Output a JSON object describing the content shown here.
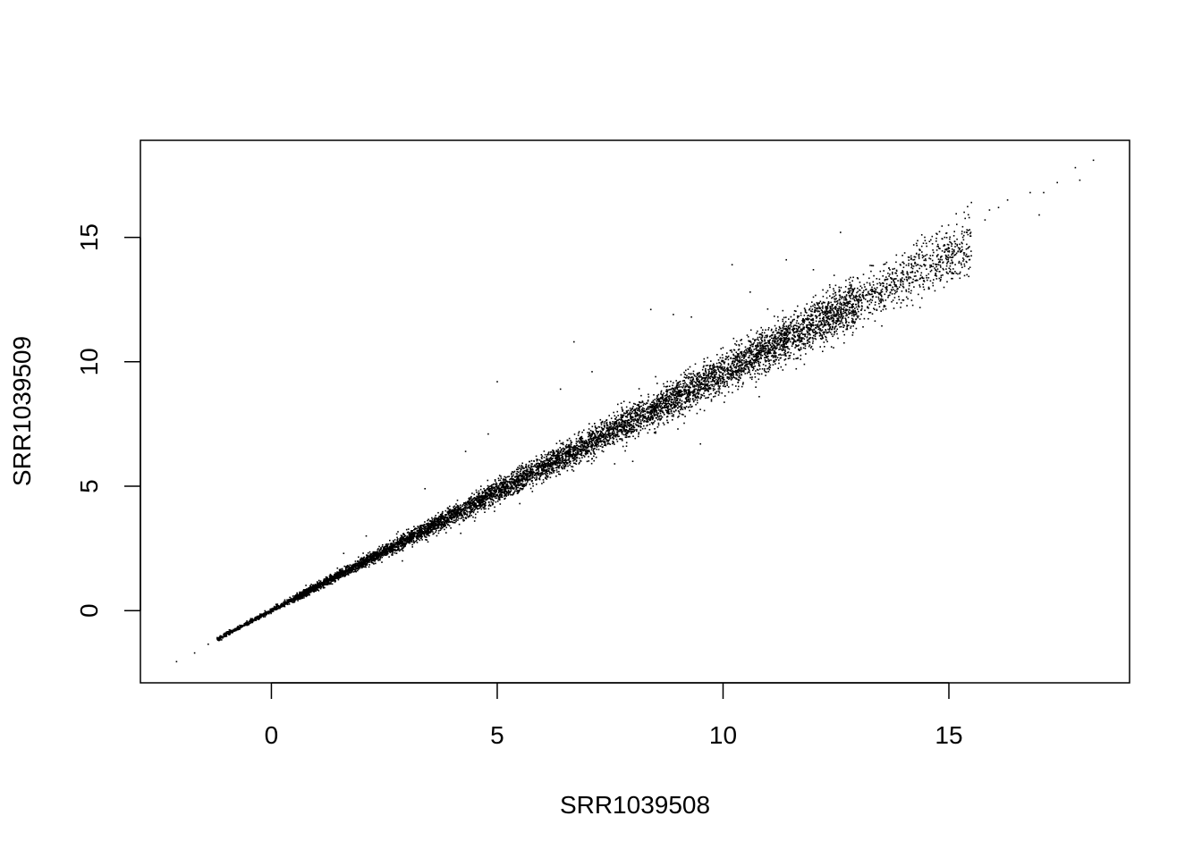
{
  "chart_data": {
    "type": "scatter",
    "title": "",
    "xlabel": "SRR1039508",
    "ylabel": "SRR1039509",
    "xlim": [
      -2.9,
      19.0
    ],
    "ylim": [
      -2.9,
      18.9
    ],
    "xticks": [
      0,
      5,
      10,
      15
    ],
    "yticks": [
      0,
      5,
      10,
      15
    ],
    "xtick_labels": [
      "0",
      "5",
      "10",
      "15"
    ],
    "ytick_labels": [
      "0",
      "5",
      "10",
      "15"
    ],
    "grid": false,
    "legend": "none",
    "marker_color": "#000000",
    "marker": "small dot",
    "trend": {
      "slope": 0.955,
      "intercept": 0.0,
      "x_range": [
        -2.1,
        18.1
      ]
    },
    "points": [
      {
        "x": -2.1,
        "y": -2.05
      },
      {
        "x": -1.7,
        "y": -1.7
      },
      {
        "x": -1.4,
        "y": -1.35
      },
      {
        "x": 18.2,
        "y": 18.1
      },
      {
        "x": 17.8,
        "y": 17.8
      },
      {
        "x": 17.9,
        "y": 17.3
      },
      {
        "x": 17.4,
        "y": 17.2
      },
      {
        "x": 17.1,
        "y": 16.8
      },
      {
        "x": 16.8,
        "y": 16.8
      },
      {
        "x": 17.0,
        "y": 15.9
      },
      {
        "x": 16.3,
        "y": 16.5
      },
      {
        "x": 16.1,
        "y": 16.2
      },
      {
        "x": 15.9,
        "y": 16.1
      },
      {
        "x": 15.8,
        "y": 15.7
      },
      {
        "x": 15.5,
        "y": 16.4
      },
      {
        "x": 15.4,
        "y": 15.3
      },
      {
        "x": 15.3,
        "y": 14.5
      },
      {
        "x": 15.4,
        "y": 13.5
      },
      {
        "x": 14.9,
        "y": 14.7
      },
      {
        "x": 14.6,
        "y": 14.9
      },
      {
        "x": 14.4,
        "y": 15.1
      },
      {
        "x": 14.0,
        "y": 13.5
      },
      {
        "x": 13.7,
        "y": 13.1
      },
      {
        "x": 12.6,
        "y": 15.2
      },
      {
        "x": 11.4,
        "y": 14.1
      },
      {
        "x": 10.2,
        "y": 13.9
      },
      {
        "x": 8.4,
        "y": 12.1
      },
      {
        "x": 8.9,
        "y": 11.9
      },
      {
        "x": 6.7,
        "y": 10.8
      },
      {
        "x": 5.0,
        "y": 9.2
      },
      {
        "x": 4.3,
        "y": 6.4
      },
      {
        "x": 3.4,
        "y": 4.9
      },
      {
        "x": 3.6,
        "y": 3.1
      },
      {
        "x": 4.5,
        "y": 3.6
      },
      {
        "x": 5.5,
        "y": 4.3
      },
      {
        "x": 6.1,
        "y": 5.4
      },
      {
        "x": 7.6,
        "y": 5.9
      },
      {
        "x": 8.0,
        "y": 6.0
      },
      {
        "x": 9.5,
        "y": 6.7
      },
      {
        "x": 10.8,
        "y": 8.6
      },
      {
        "x": 12.4,
        "y": 10.6
      },
      {
        "x": 13.1,
        "y": 11.4
      },
      {
        "x": 6.4,
        "y": 8.9
      },
      {
        "x": 7.1,
        "y": 9.6
      },
      {
        "x": 9.3,
        "y": 11.8
      },
      {
        "x": 10.6,
        "y": 12.8
      },
      {
        "x": 12.0,
        "y": 13.7
      },
      {
        "x": 2.1,
        "y": 3.0
      },
      {
        "x": 1.6,
        "y": 2.3
      },
      {
        "x": 2.9,
        "y": 2.0
      },
      {
        "x": 4.8,
        "y": 7.1
      },
      {
        "x": 11.8,
        "y": 9.9
      },
      {
        "x": 13.9,
        "y": 12.5
      },
      {
        "x": 9.0,
        "y": 7.3
      }
    ]
  }
}
